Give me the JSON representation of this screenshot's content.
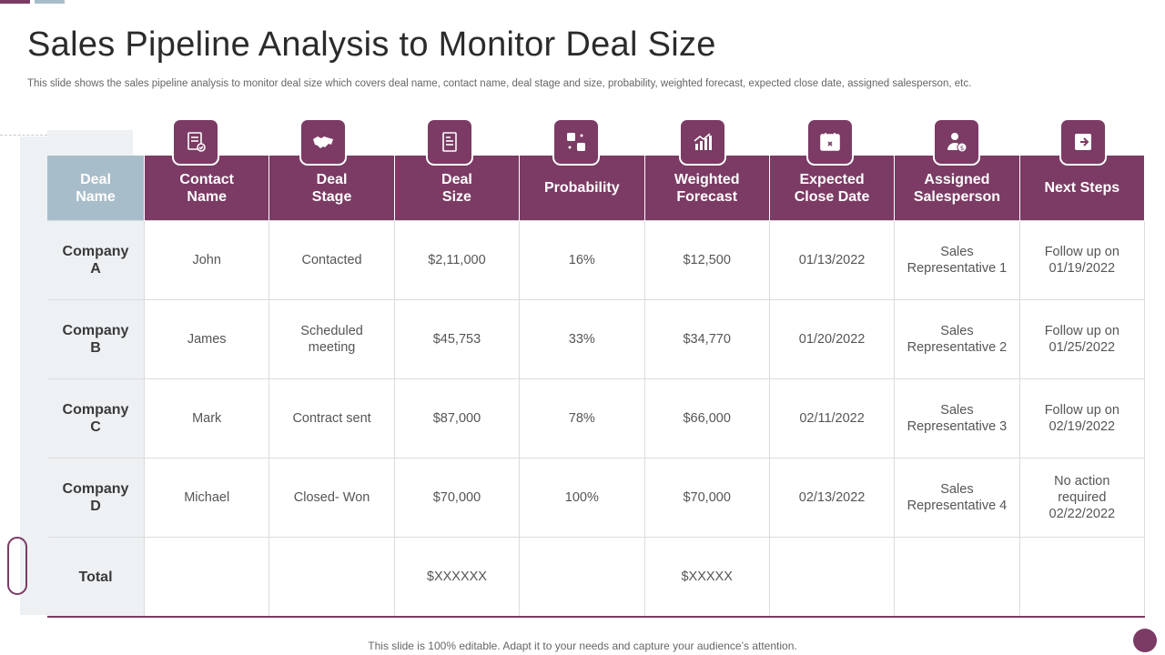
{
  "title": "Sales Pipeline Analysis to Monitor Deal Size",
  "subtitle": "This slide shows the sales pipeline analysis to monitor deal size which covers deal name, contact name, deal stage and size, probability, weighted forecast, expected close date, assigned salesperson, etc.",
  "footer": "This slide is 100% editable. Adapt it to your needs and capture your audience’s attention.",
  "colors": {
    "accent": "#7b3b64",
    "header_first": "#a8bdca",
    "panel": "#edf1f4"
  },
  "icons": [
    "document-badge-icon",
    "handshake-icon",
    "invoice-icon",
    "dice-icon",
    "growth-chart-icon",
    "calendar-x-icon",
    "user-dollar-icon",
    "arrow-right-icon"
  ],
  "table": {
    "headers": [
      "Deal\nName",
      "Contact\nName",
      "Deal\nStage",
      "Deal\nSize",
      "Probability",
      "Weighted\nForecast",
      "Expected\nClose Date",
      "Assigned\nSalesperson",
      "Next Steps"
    ],
    "rows": [
      [
        "Company\nA",
        "John",
        "Contacted",
        "$2,11,000",
        "16%",
        "$12,500",
        "01/13/2022",
        "Sales\nRepresentative 1",
        "Follow up on\n01/19/2022"
      ],
      [
        "Company\nB",
        "James",
        "Scheduled\nmeeting",
        "$45,753",
        "33%",
        "$34,770",
        "01/20/2022",
        "Sales\nRepresentative 2",
        "Follow up on\n01/25/2022"
      ],
      [
        "Company\nC",
        "Mark",
        "Contract sent",
        "$87,000",
        "78%",
        "$66,000",
        "02/11/2022",
        "Sales\nRepresentative 3",
        "Follow up on\n02/19/2022"
      ],
      [
        "Company\nD",
        "Michael",
        "Closed- Won",
        "$70,000",
        "100%",
        "$70,000",
        "02/13/2022",
        "Sales\nRepresentative 4",
        "No action\nrequired\n02/22/2022"
      ],
      [
        "Total",
        "",
        "",
        "$XXXXXX",
        "",
        "$XXXXX",
        "",
        "",
        ""
      ]
    ]
  }
}
